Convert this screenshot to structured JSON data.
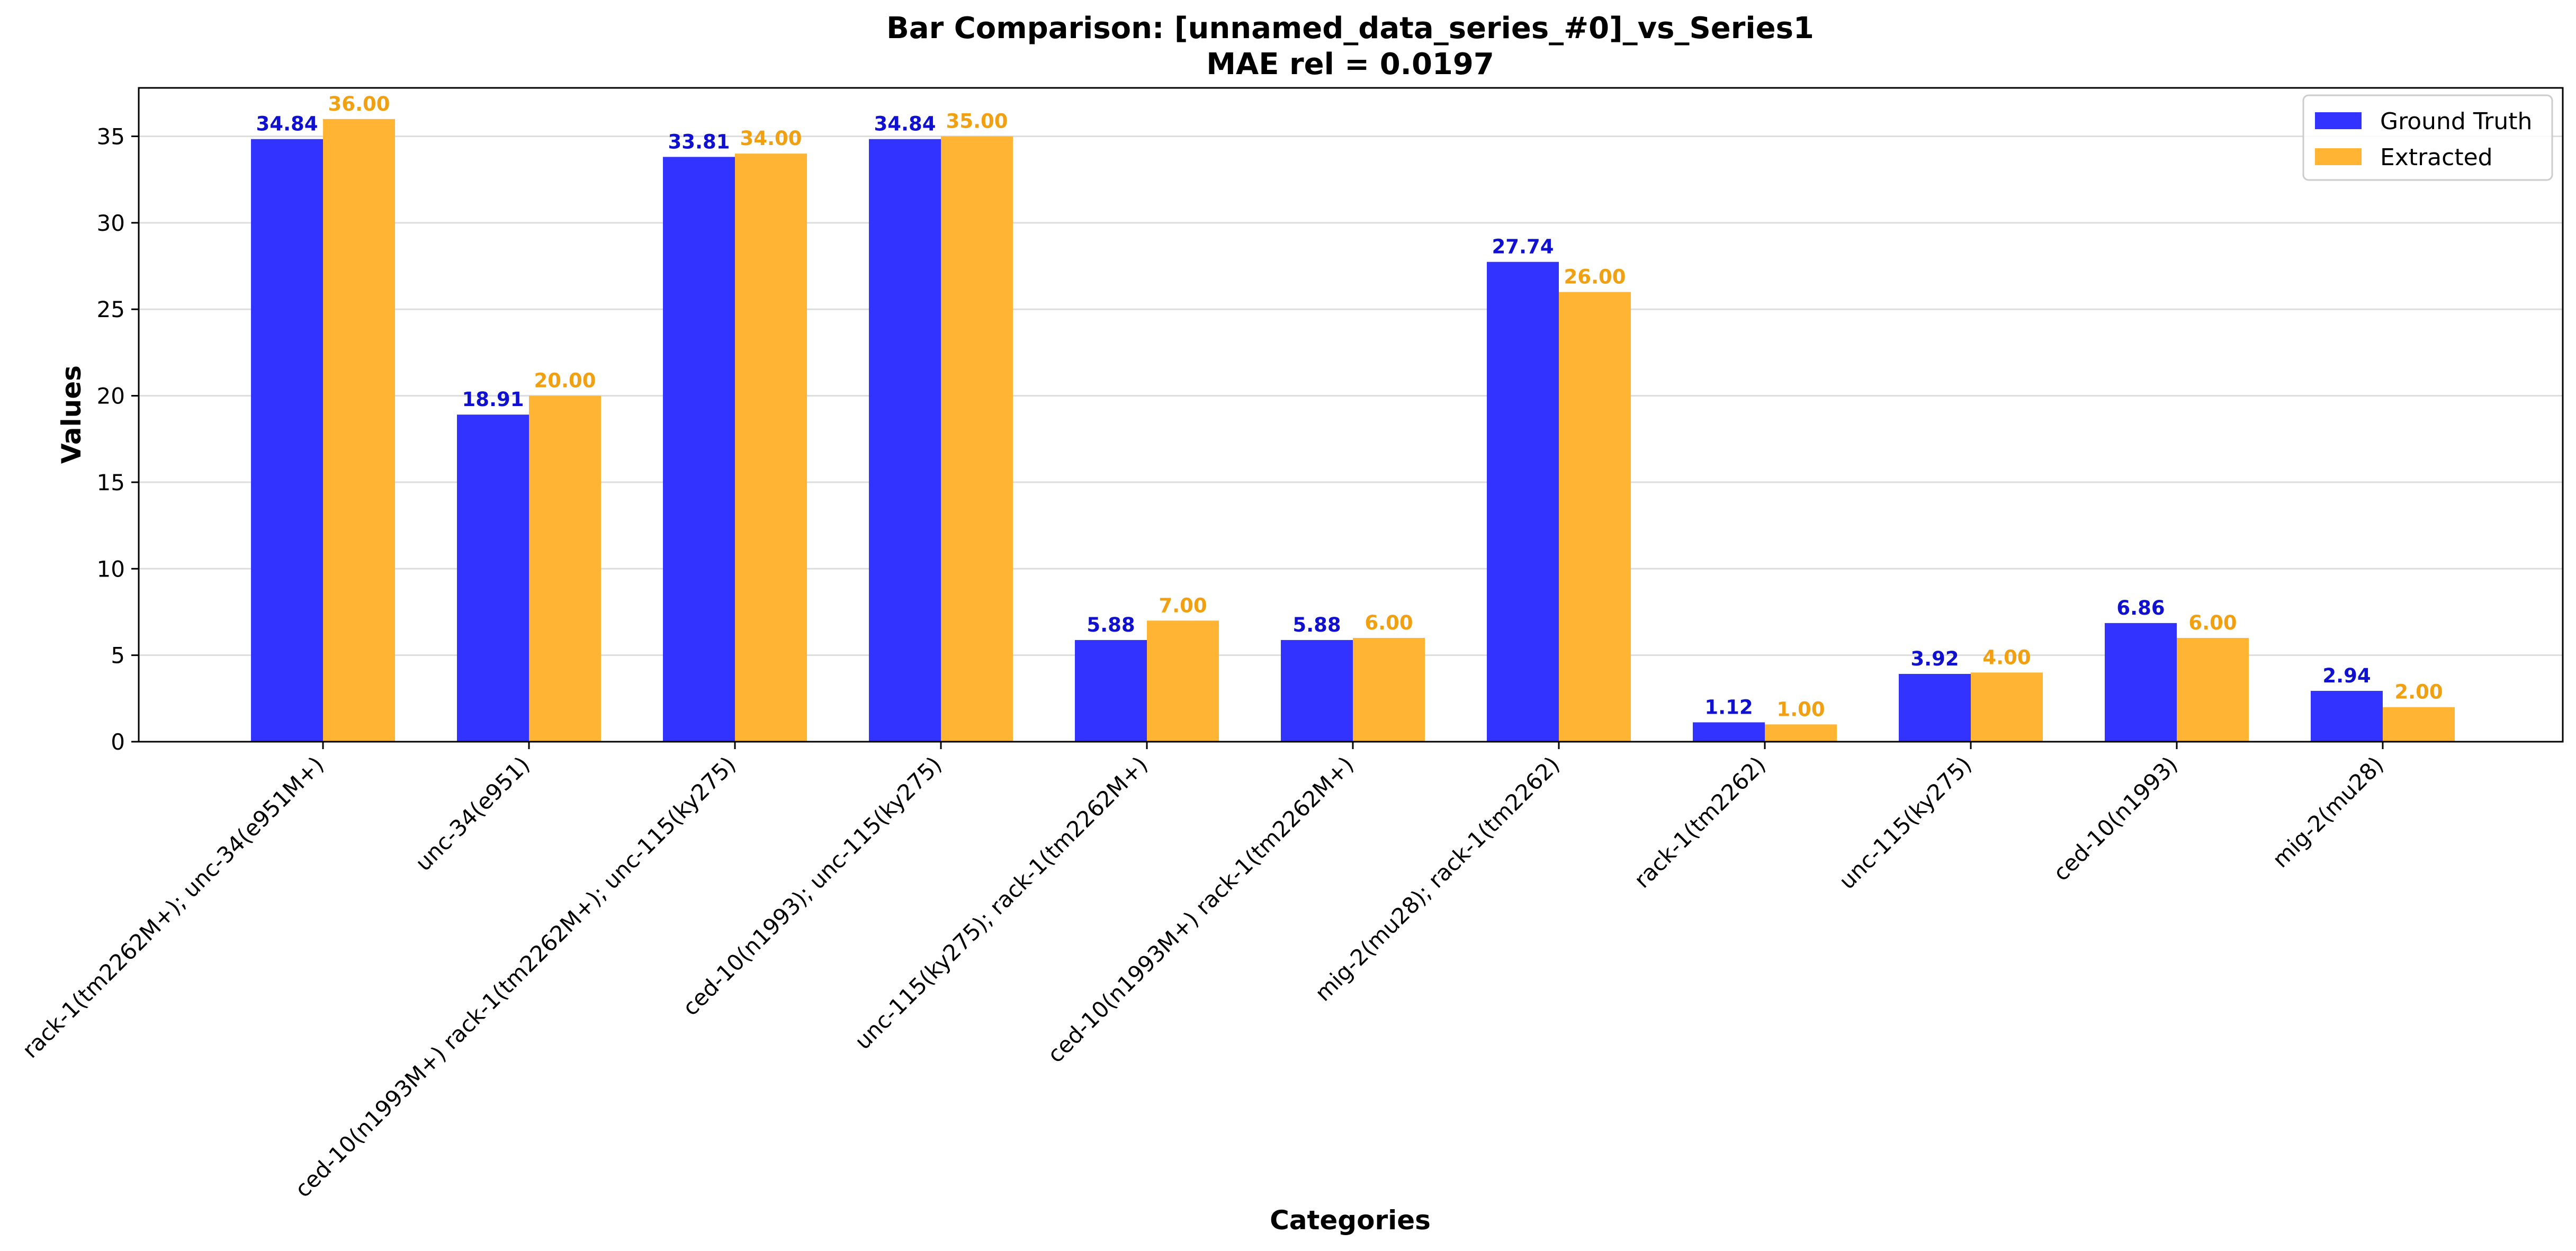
{
  "chart_data": {
    "type": "bar",
    "title": "Bar Comparison: [unnamed_data_series_#0]_vs_Series1",
    "subtitle": "MAE rel = 0.0197",
    "xlabel": "Categories",
    "ylabel": "Values",
    "ylim": [
      0,
      37.8
    ],
    "yticks": [
      0,
      5,
      10,
      15,
      20,
      25,
      30,
      35
    ],
    "grid": "y",
    "legend_position": "top-right",
    "categories": [
      "rack-1(tm2262M+); unc-34(e951M+)",
      "unc-34(e951)",
      "ced-10(n1993M+) rack-1(tm2262M+); unc-115(ky275)",
      "ced-10(n1993); unc-115(ky275)",
      "unc-115(ky275); rack-1(tm2262M+)",
      "ced-10(n1993M+) rack-1(tm2262M+)",
      "mig-2(mu28); rack-1(tm2262)",
      "rack-1(tm2262)",
      "unc-115(ky275)",
      "ced-10(n1993)",
      "mig-2(mu28)"
    ],
    "series": [
      {
        "name": "Ground Truth",
        "color": "#3333ff",
        "label_color": "#1010d0",
        "values": [
          34.84,
          18.91,
          33.81,
          34.84,
          5.88,
          5.88,
          27.74,
          1.12,
          3.92,
          6.86,
          2.94
        ],
        "labels": [
          "34.84",
          "18.91",
          "33.81",
          "34.84",
          "5.88",
          "5.88",
          "27.74",
          "1.12",
          "3.92",
          "6.86",
          "2.94"
        ]
      },
      {
        "name": "Extracted",
        "color": "#ffb433",
        "label_color": "#f0a010",
        "values": [
          36.0,
          20.0,
          34.0,
          35.0,
          7.0,
          6.0,
          26.0,
          1.0,
          4.0,
          6.0,
          2.0
        ],
        "labels": [
          "36.00",
          "20.00",
          "34.00",
          "35.00",
          "7.00",
          "6.00",
          "26.00",
          "1.00",
          "4.00",
          "6.00",
          "2.00"
        ]
      }
    ]
  }
}
